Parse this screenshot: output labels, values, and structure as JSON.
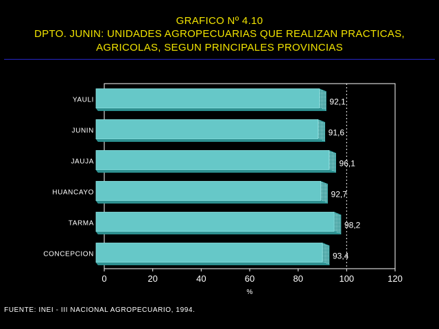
{
  "header": {
    "title": "GRAFICO Nº 4.10",
    "subtitle_1": "DPTO. JUNIN: UNIDADES AGROPECUARIAS QUE REALIZAN PRACTICAS,",
    "subtitle_2": "AGRICOLAS, SEGUN PRINCIPALES PROVINCIAS"
  },
  "colors": {
    "title": "#f2e400",
    "bar_front": "#66c8c8",
    "bar_edge": "#2fa0a0",
    "rule": "#2727c8"
  },
  "chart_data": {
    "type": "bar",
    "orientation": "horizontal",
    "categories": [
      "YAULI",
      "JUNIN",
      "JAUJA",
      "HUANCAYO",
      "TARMA",
      "CONCEPCION"
    ],
    "values": [
      92.1,
      91.6,
      96.1,
      92.7,
      98.2,
      93.4
    ],
    "value_labels": [
      "92,1",
      "91,6",
      "96,1",
      "92,7",
      "98,2",
      "93,4"
    ],
    "xlabel": "%",
    "xlim": [
      0,
      120
    ],
    "xticks": [
      0,
      20,
      40,
      60,
      80,
      100,
      120
    ],
    "reference_line": 100,
    "grid": false
  },
  "footer": {
    "source": "FUENTE: INEI - III NACIONAL AGROPECUARIO, 1994."
  }
}
